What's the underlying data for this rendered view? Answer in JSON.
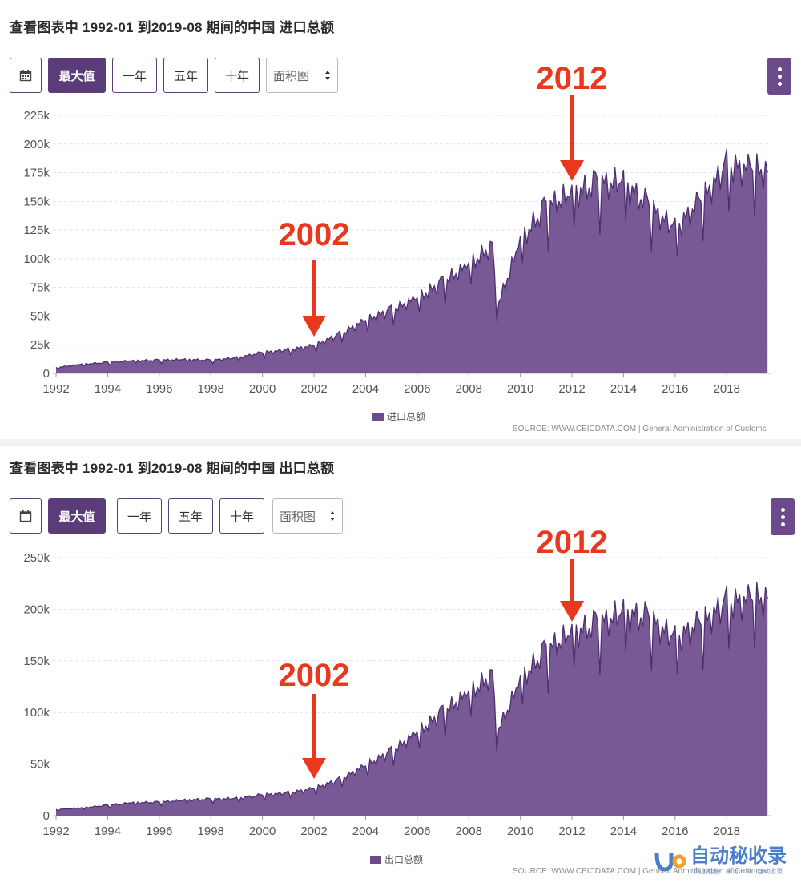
{
  "panels": [
    {
      "title": "查看图表中 1992-01 到2019-08 期间的中国 进口总额",
      "toolbar": {
        "calendar_icon": "calendar-icon",
        "buttons": [
          "最大值",
          "一年",
          "五年",
          "十年"
        ],
        "active": "最大值",
        "chart_type_select": "面积图",
        "menu_icon": "kebab-menu-icon"
      },
      "legend": "进口总额",
      "source": "SOURCE: WWW.CEICDATA.COM | General Administration of Customs",
      "annotations": [
        "2002",
        "2012"
      ]
    },
    {
      "title": "查看图表中 1992-01 到2019-08 期间的中国 出口总额",
      "toolbar": {
        "calendar_icon": "calendar-icon",
        "buttons": [
          "最大值",
          "一年",
          "五年",
          "十年"
        ],
        "active": "最大值",
        "chart_type_select": "面积图",
        "menu_icon": "kebab-menu-icon"
      },
      "legend": "出口总额",
      "source": "SOURCE: WWW.CEICDATA.COM | General Administration of Customs",
      "annotations": [
        "2002",
        "2012"
      ]
    }
  ],
  "watermark": {
    "title": "自动秘收录",
    "subtitle": "网上链接 · 来访一次 · 自动收录"
  },
  "colors": {
    "area": "#6c4b8d",
    "line": "#4e2f6e",
    "annotation": "#e8391f",
    "button_active": "#5a3c78"
  },
  "chart_data": [
    {
      "type": "area",
      "title": "查看图表中 1992-01 到2019-08 期间的中国 进口总额",
      "series": [
        {
          "name": "进口总额",
          "x": [
            1992,
            1993,
            1994,
            1995,
            1996,
            1997,
            1998,
            1999,
            2000,
            2001,
            2002,
            2003,
            2004,
            2005,
            2006,
            2007,
            2008,
            2008.9,
            2009.1,
            2010,
            2011,
            2012,
            2013,
            2014,
            2015,
            2016,
            2017,
            2018,
            2019.6
          ],
          "values": [
            5000,
            8000,
            9500,
            11000,
            11500,
            12000,
            11500,
            13500,
            18000,
            20500,
            24000,
            34000,
            46000,
            55000,
            65000,
            79000,
            94000,
            110000,
            57000,
            115000,
            145000,
            155000,
            165000,
            165000,
            145000,
            125000,
            150000,
            180000,
            175000
          ]
        }
      ],
      "xticks": [
        "1992",
        "1994",
        "1996",
        "1998",
        "2000",
        "2002",
        "2004",
        "2006",
        "2008",
        "2010",
        "2012",
        "2014",
        "2016",
        "2018"
      ],
      "yticks": [
        "0",
        "25k",
        "50k",
        "75k",
        "100k",
        "125k",
        "150k",
        "175k",
        "200k",
        "225k"
      ],
      "ylim": [
        0,
        225000
      ],
      "xlim": [
        1992,
        2019.7
      ],
      "grid": true,
      "legend_position": "bottom-center",
      "annotations": [
        {
          "text": "2002",
          "x": 2002
        },
        {
          "text": "2012",
          "x": 2012
        }
      ]
    },
    {
      "type": "area",
      "title": "查看图表中 1992-01 到2019-08 期间的中国 出口总额",
      "series": [
        {
          "name": "出口总额",
          "x": [
            1992,
            1993,
            1994,
            1995,
            1996,
            1997,
            1998,
            1999,
            2000,
            2001,
            2002,
            2003,
            2004,
            2005,
            2006,
            2007,
            2008,
            2008.9,
            2009.1,
            2010,
            2011,
            2012,
            2013,
            2014,
            2015,
            2016,
            2017,
            2018,
            2019.6
          ],
          "values": [
            6000,
            7500,
            10000,
            12500,
            13000,
            15000,
            16000,
            16500,
            20000,
            22000,
            26000,
            35000,
            48000,
            62000,
            80000,
            100000,
            118000,
            135000,
            80000,
            130000,
            160000,
            175000,
            185000,
            195000,
            190000,
            170000,
            185000,
            205000,
            210000
          ]
        }
      ],
      "xticks": [
        "1992",
        "1994",
        "1996",
        "1998",
        "2000",
        "2002",
        "2004",
        "2006",
        "2008",
        "2010",
        "2012",
        "2014",
        "2016",
        "2018"
      ],
      "yticks": [
        "0",
        "50k",
        "100k",
        "150k",
        "200k",
        "250k"
      ],
      "ylim": [
        0,
        250000
      ],
      "xlim": [
        1992,
        2019.7
      ],
      "grid": true,
      "legend_position": "bottom-center",
      "annotations": [
        {
          "text": "2002",
          "x": 2002
        },
        {
          "text": "2012",
          "x": 2012
        }
      ]
    }
  ]
}
